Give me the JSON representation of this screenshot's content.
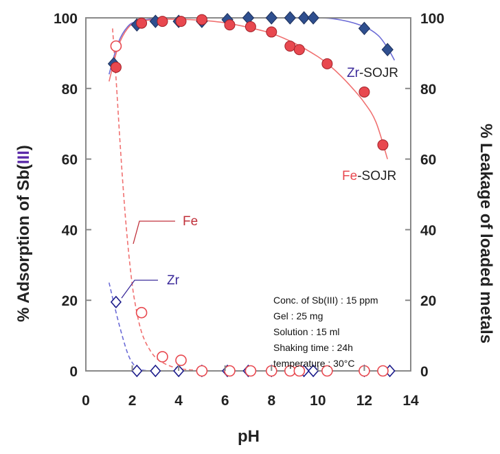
{
  "chart_data": {
    "type": "scatter",
    "xlabel": "pH",
    "ylabel_left": "% Adsorption of Sb(III)",
    "ylabel_left_parts": [
      "% Adsorption of Sb(",
      "III",
      ")"
    ],
    "ylabel_right": "% Leakage of loaded metals",
    "xlim": [
      0,
      14
    ],
    "ylim": [
      0,
      100
    ],
    "x_ticks": [
      0,
      2,
      4,
      6,
      8,
      10,
      12,
      14
    ],
    "y_ticks": [
      0,
      20,
      40,
      60,
      80,
      100
    ],
    "grid": false,
    "series": [
      {
        "name": "Zr-SOJR",
        "label_prefix": "Zr",
        "label_suffix": "-SOJR",
        "kind": "adsorption",
        "marker": "diamond-filled",
        "color": "#2f4f8f",
        "fit_color": "#6b6bd6",
        "x": [
          1.2,
          2.2,
          3.0,
          4.0,
          5.0,
          6.1,
          7.0,
          8.0,
          8.8,
          9.4,
          9.8,
          12.0,
          13.0
        ],
        "y": [
          87,
          98,
          99,
          99,
          99,
          99.5,
          100,
          100,
          100,
          100,
          100,
          97,
          91
        ],
        "fit_x": [
          1.0,
          1.4,
          1.8,
          2.2,
          3.0,
          4.0,
          6.0,
          8.0,
          10.0,
          11.0,
          12.0,
          12.6,
          13.0,
          13.3
        ],
        "fit_y": [
          84,
          93,
          97.5,
          99,
          99.8,
          100,
          100,
          100,
          100,
          99.4,
          97.5,
          95,
          91.5,
          88
        ]
      },
      {
        "name": "Fe-SOJR",
        "label_prefix": "Fe",
        "label_suffix": "-SOJR",
        "kind": "adsorption",
        "marker": "circle-filled",
        "color": "#e8484f",
        "fit_color": "#f07070",
        "x": [
          1.3,
          2.4,
          3.3,
          4.1,
          5.0,
          6.2,
          7.1,
          8.0,
          8.8,
          9.2,
          10.4,
          12.0,
          12.8
        ],
        "y": [
          86,
          98.5,
          99,
          99,
          99.5,
          98,
          97.5,
          96,
          92,
          91,
          87,
          79,
          64
        ],
        "fit_x": [
          1.0,
          1.4,
          1.8,
          2.2,
          3.0,
          4.0,
          5.0,
          6.0,
          7.0,
          8.0,
          9.0,
          10.0,
          10.5,
          11.0,
          11.5,
          12.0,
          12.5,
          13.0
        ],
        "fit_y": [
          82,
          92,
          97,
          98.8,
          99.5,
          99.6,
          99.3,
          98.6,
          97.3,
          95.6,
          92.8,
          89,
          86.5,
          83.5,
          80,
          76,
          70.5,
          60
        ]
      },
      {
        "name": "Zr",
        "label": "Zr",
        "kind": "leakage",
        "marker": "diamond-open",
        "color": "#1a1a8a",
        "fit_color": "#6b6bd6",
        "x": [
          1.3,
          2.2,
          3.0,
          4.0,
          5.0,
          6.1,
          7.0,
          8.0,
          9.4,
          9.8,
          12.0,
          13.1
        ],
        "y": [
          19.5,
          0,
          0,
          0,
          0,
          0,
          0,
          0,
          0,
          0,
          0,
          0
        ],
        "fit_x": [
          1.0,
          1.4,
          1.8,
          2.1,
          2.4,
          2.8,
          3.2
        ],
        "fit_y": [
          25,
          14,
          5,
          1.5,
          0.3,
          0,
          0
        ]
      },
      {
        "name": "Fe",
        "label": "Fe",
        "kind": "leakage",
        "marker": "circle-open",
        "color": "#e8484f",
        "fit_color": "#f07070",
        "x": [
          1.3,
          2.4,
          3.3,
          4.1,
          5.0,
          6.2,
          7.1,
          8.0,
          8.8,
          9.2,
          10.4,
          12.0,
          12.8
        ],
        "y": [
          92,
          16.5,
          4,
          3,
          0,
          0,
          0,
          0,
          0,
          0,
          0,
          0,
          0
        ],
        "fit_x": [
          1.15,
          1.3,
          1.5,
          1.7,
          1.9,
          2.1,
          2.4,
          2.8,
          3.2,
          3.8,
          4.5,
          5.5,
          6.5
        ],
        "fit_y": [
          97,
          83,
          62,
          44,
          30,
          20,
          11,
          5.5,
          2.8,
          1,
          0.3,
          0,
          0
        ]
      }
    ],
    "conditions": [
      {
        "label": "Conc. of Sb(III) : 15 ppm"
      },
      {
        "label": "Gel : 25 mg"
      },
      {
        "label": "Solution : 15 ml"
      },
      {
        "label": "Shaking time : 24h"
      },
      {
        "label": "temperature : 30°C"
      }
    ]
  }
}
